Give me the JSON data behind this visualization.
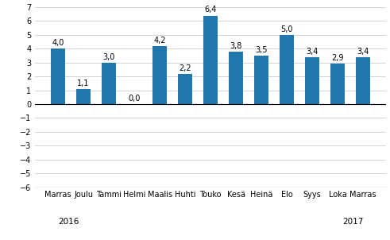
{
  "categories": [
    "Marras",
    "Joulu",
    "Tammi",
    "Helmi",
    "Maalis",
    "Huhti",
    "Touko",
    "Kesä",
    "Heinä",
    "Elo",
    "Syys",
    "Loka",
    "Marras"
  ],
  "values": [
    4.0,
    1.1,
    3.0,
    0.0,
    4.2,
    2.2,
    6.4,
    3.8,
    3.5,
    5.0,
    3.4,
    2.9,
    3.4
  ],
  "bar_color": "#2176AE",
  "ylim": [
    -6,
    7
  ],
  "yticks": [
    -6,
    -5,
    -4,
    -3,
    -2,
    -1,
    0,
    1,
    2,
    3,
    4,
    5,
    6,
    7
  ],
  "value_labels": [
    "4,0",
    "1,1",
    "3,0",
    "0,0",
    "4,2",
    "2,2",
    "6,4",
    "3,8",
    "3,5",
    "5,0",
    "3,4",
    "2,9",
    "3,4"
  ],
  "label_fontsize": 7.0,
  "tick_fontsize": 7.0,
  "year_fontsize": 7.5,
  "year_2016_idx": 0,
  "year_2017_idx": 12,
  "background_color": "#ffffff",
  "grid_color": "#cccccc",
  "bar_width": 0.55
}
